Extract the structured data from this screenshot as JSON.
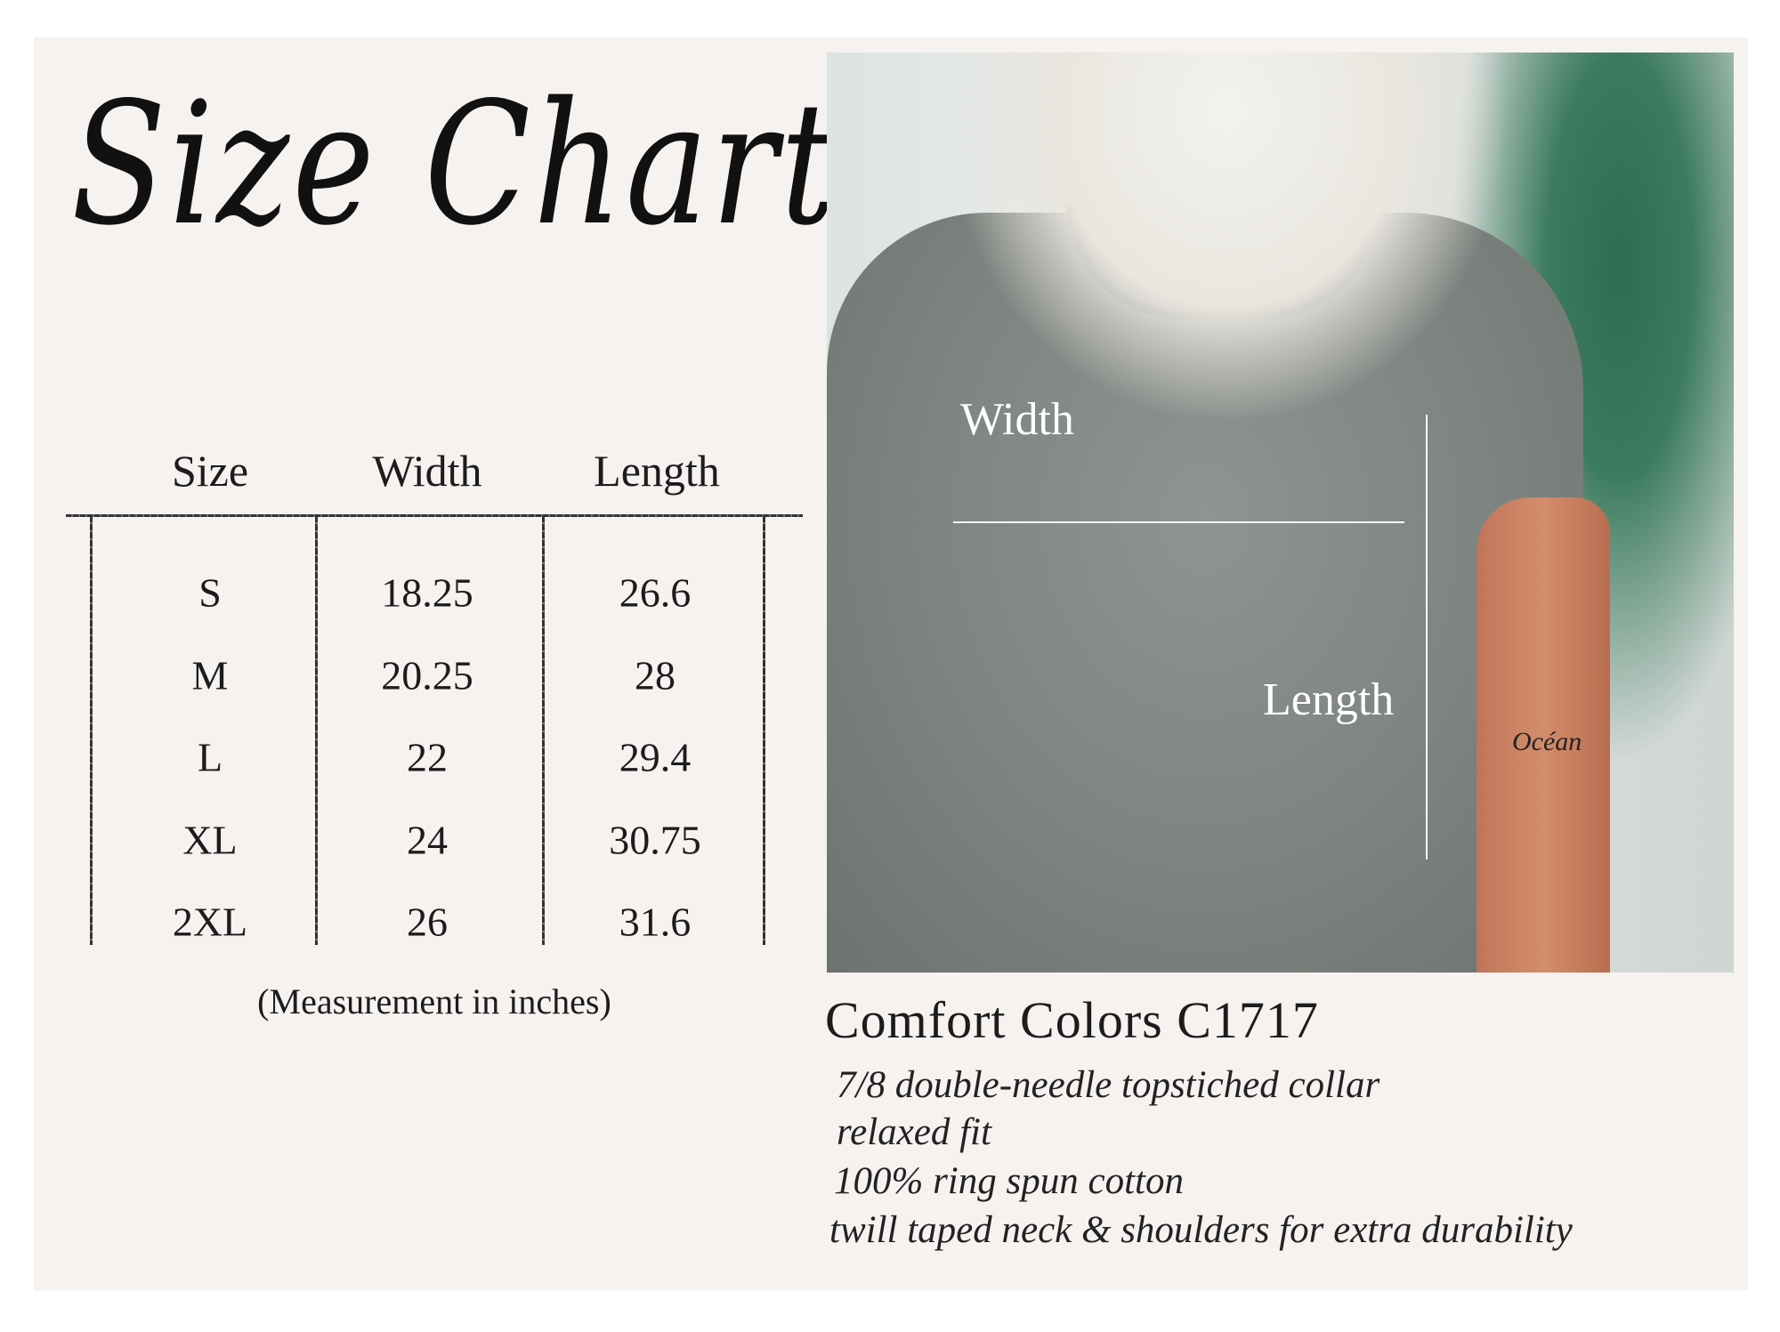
{
  "title": "Size Chart",
  "table": {
    "headers": [
      "Size",
      "Width",
      "Length"
    ],
    "rows": [
      [
        "S",
        "18.25",
        "26.6"
      ],
      [
        "M",
        "20.25",
        "28"
      ],
      [
        "L",
        "22",
        "29.4"
      ],
      [
        "XL",
        "24",
        "30.75"
      ],
      [
        "2XL",
        "26",
        "31.6"
      ]
    ],
    "note": "(Measurement in inches)"
  },
  "photo": {
    "width_label": "Width",
    "length_label": "Length",
    "tattoo": "Océan"
  },
  "product": {
    "name": "Comfort Colors C1717",
    "features": [
      "7/8 double-needle topstiched collar",
      "relaxed fit",
      "100% ring spun cotton",
      "twill taped neck & shoulders for extra durability"
    ]
  },
  "colors": {
    "background": "#f6f2f0",
    "text": "#1c1c1c",
    "shirt": "#7d837f"
  }
}
